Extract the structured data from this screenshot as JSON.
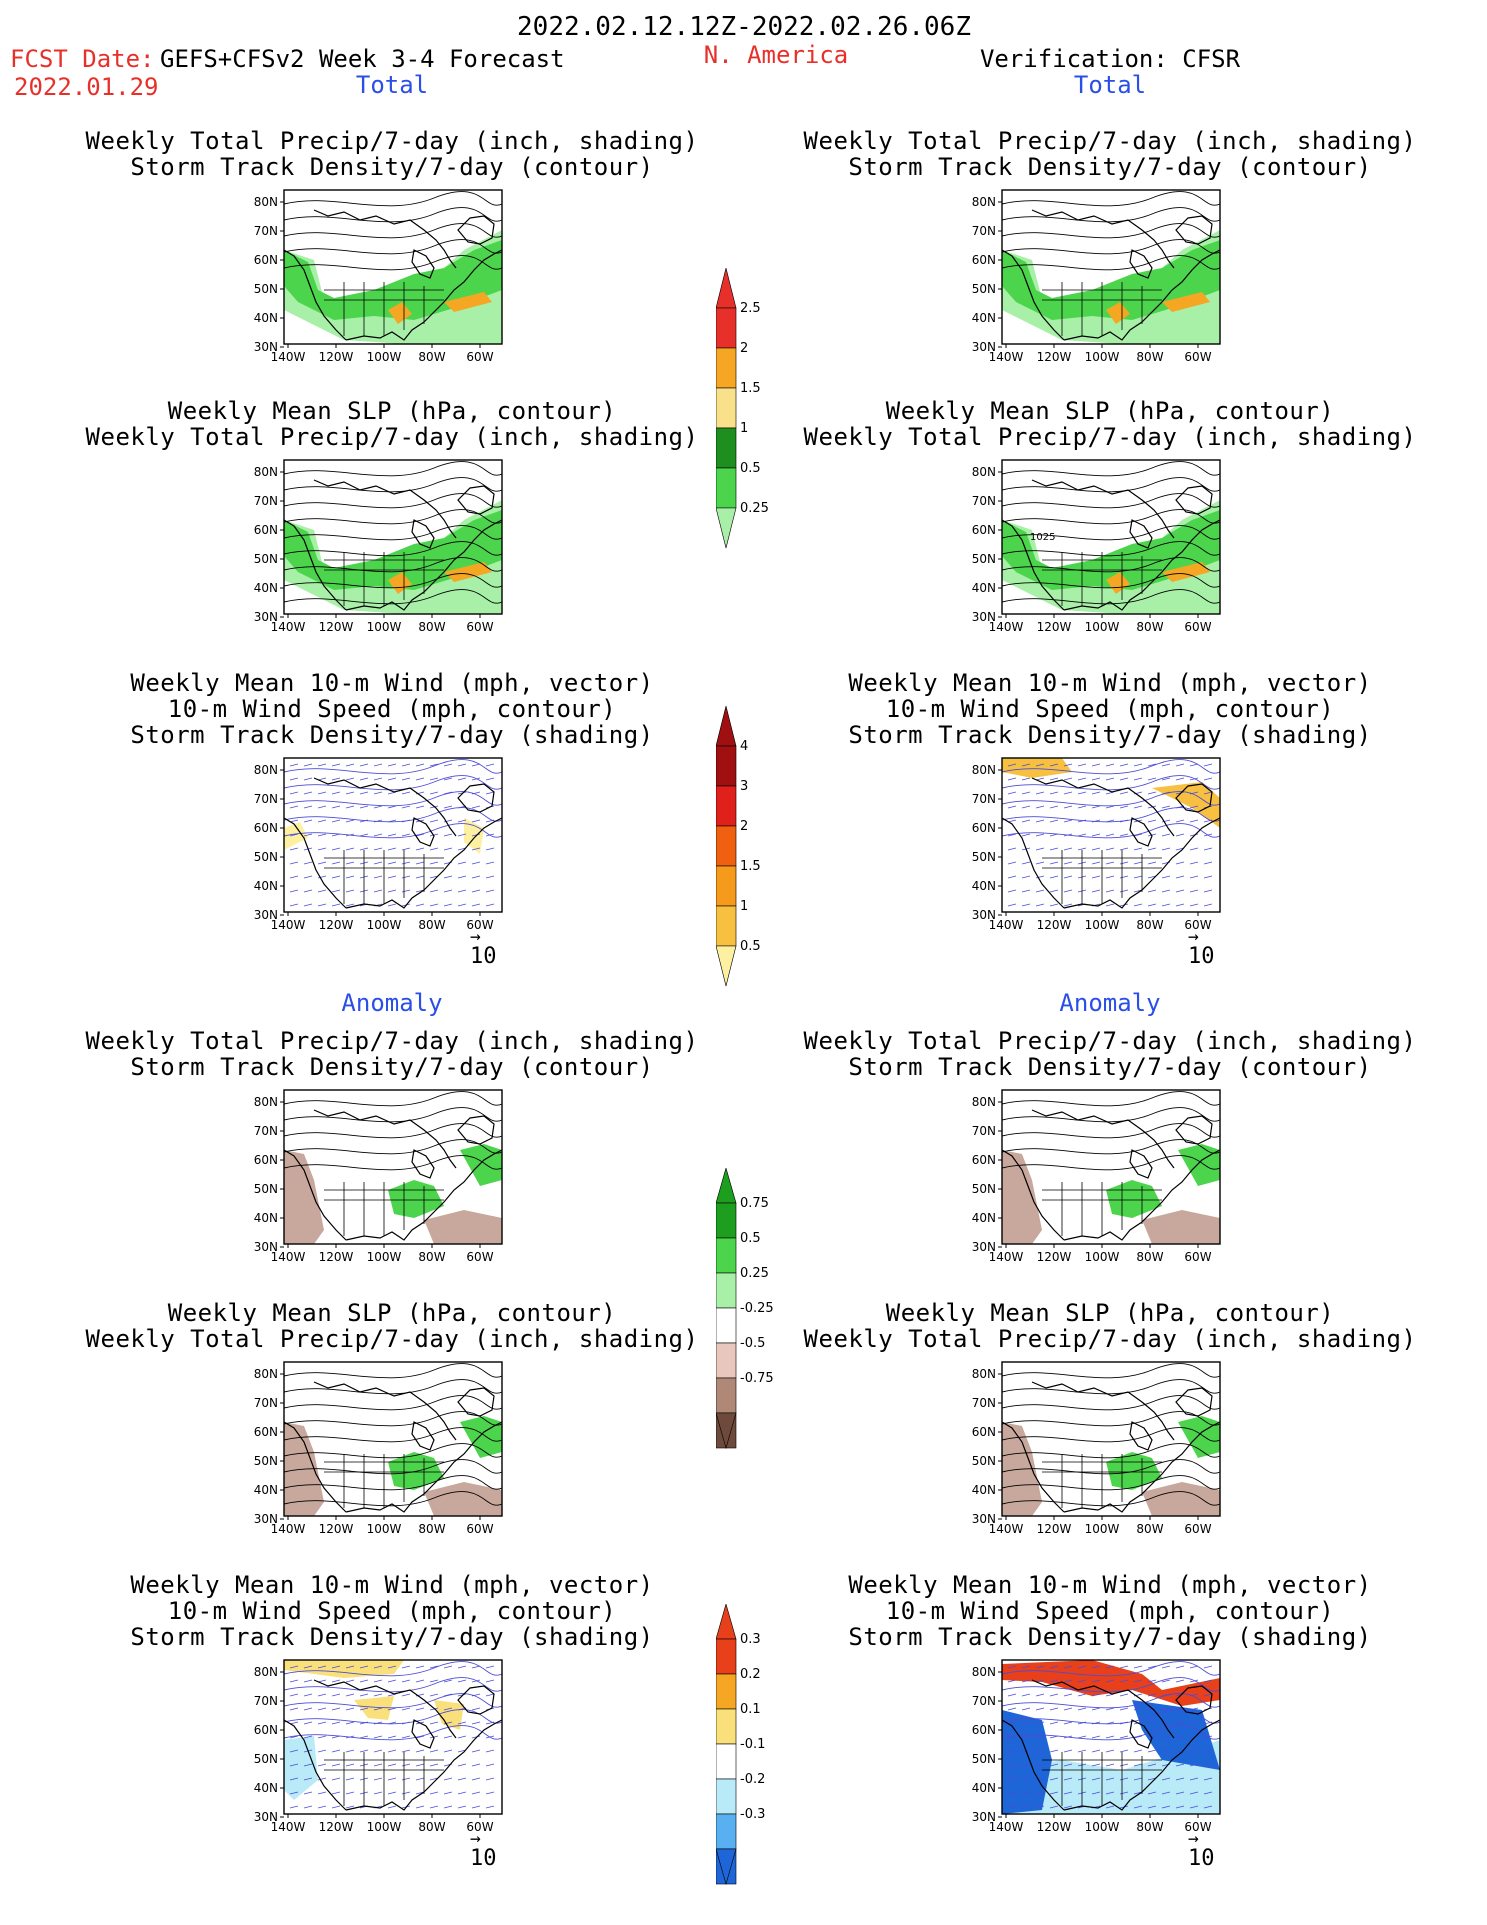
{
  "header": {
    "date_range": "2022.02.12.12Z-2022.02.26.06Z",
    "fcst_date_label": "FCST Date:",
    "fcst_date": "2022.01.29",
    "forecast_title": "GEFS+CFSv2 Week 3-4 Forecast",
    "region": "N. America",
    "verification": "Verification: CFSR"
  },
  "sections": {
    "total": "Total",
    "anomaly": "Anomaly"
  },
  "panel_titles": {
    "precip_storm": [
      "Weekly Total Precip/7-day (inch, shading)",
      "Storm Track Density/7-day (contour)"
    ],
    "slp_precip": [
      "Weekly Mean SLP (hPa, contour)",
      "Weekly Total Precip/7-day (inch, shading)"
    ],
    "wind_storm": [
      "Weekly Mean 10-m Wind (mph, vector)",
      "10-m Wind Speed (mph, contour)",
      "Storm Track Density/7-day (shading)"
    ]
  },
  "axes": {
    "lat_ticks": [
      "80N",
      "70N",
      "60N",
      "50N",
      "40N",
      "30N"
    ],
    "lon_ticks": [
      "140W",
      "120W",
      "100W",
      "80W",
      "60W"
    ]
  },
  "vector_ref": "10",
  "contour_label": "1025",
  "colorbars": {
    "precip_total": {
      "labels": [
        "2.5",
        "2",
        "1.5",
        "1",
        "0.5",
        "0.25"
      ],
      "colors": [
        "#e8302a",
        "#f5a623",
        "#f9e08a",
        "#1e8f1e",
        "#4cd44c",
        "#a8f0a8"
      ]
    },
    "storm_total": {
      "labels": [
        "4",
        "3",
        "2",
        "1.5",
        "1",
        "0.5"
      ],
      "colors": [
        "#a01010",
        "#e0201a",
        "#f06010",
        "#f59a1a",
        "#f8c040",
        "#fdf0a0"
      ]
    },
    "precip_anom": {
      "labels": [
        "0.75",
        "0.5",
        "0.25",
        "-0.25",
        "-0.5",
        "-0.75"
      ],
      "colors": [
        "#1e9e1e",
        "#4cd44c",
        "#a8f0a8",
        "#ffffff",
        "#e8c8bc",
        "#b08878",
        "#6e4a3c"
      ]
    },
    "storm_anom": {
      "labels": [
        "0.3",
        "0.2",
        "0.1",
        "-0.1",
        "-0.2",
        "-0.3"
      ],
      "colors": [
        "#e8401a",
        "#f5a623",
        "#fae07a",
        "#ffffff",
        "#b8eaf8",
        "#58b0f0",
        "#1e66d8"
      ]
    }
  },
  "maps": {
    "precip_total": {
      "land": "#ffffff",
      "fill_a": "#4cd44c",
      "fill_b": "#a8f0a8",
      "fill_c": "#f5a623"
    },
    "wind_total": {
      "fill_a": "#fdf0a0",
      "fill_b": "#f8c040",
      "vec": "#4b4bd8"
    },
    "precip_anom": {
      "fill_a": "#4cd44c",
      "fill_b": "#c8a89c"
    },
    "wind_anom_f": {
      "fill_a": "#fae07a",
      "fill_b": "#b8eaf8"
    },
    "wind_anom_v": {
      "fill_a": "#e8401a",
      "fill_b": "#1e66d8",
      "fill_c": "#b8eaf8"
    }
  }
}
